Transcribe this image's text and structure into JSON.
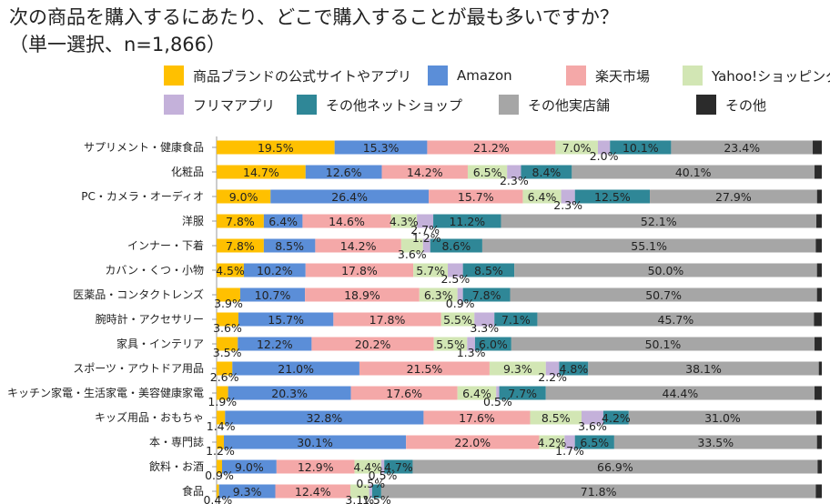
{
  "title_line1": "次の商品を購入するにあたり、どこで購入することが最も多いですか？",
  "title_line2": "（単一選択、n=1,866）",
  "chart_data": {
    "type": "bar",
    "orientation": "horizontal",
    "stacked": true,
    "percent": true,
    "legend_position": "top",
    "grid": false,
    "xlim": [
      0,
      100
    ],
    "categories": [
      "サプリメント・健康食品",
      "化粧品",
      "PC・カメラ・オーディオ",
      "洋服",
      "インナー・下着",
      "カバン・くつ・小物",
      "医薬品・コンタクトレンズ",
      "腕時計・アクセサリー",
      "家具・インテリア",
      "スポーツ・アウトドア用品",
      "キッチン家電・生活家電・美容健康家電",
      "キッズ用品・おもちゃ",
      "本・専門誌",
      "飲料・お酒",
      "食品"
    ],
    "series": [
      {
        "name": "商品ブランドの公式サイトやアプリ",
        "color": "#FFC000",
        "values": [
          19.5,
          14.7,
          9.0,
          7.8,
          7.8,
          4.5,
          3.9,
          3.6,
          3.5,
          2.6,
          1.9,
          1.4,
          1.2,
          0.9,
          0.4
        ]
      },
      {
        "name": "Amazon",
        "color": "#5B8ED8",
        "values": [
          15.3,
          12.6,
          26.4,
          6.4,
          8.5,
          10.2,
          10.7,
          15.7,
          12.2,
          21.0,
          20.3,
          32.8,
          30.1,
          9.0,
          9.3
        ]
      },
      {
        "name": "楽天市場",
        "color": "#F4A8A8",
        "values": [
          21.2,
          14.2,
          15.7,
          14.6,
          14.2,
          17.8,
          18.9,
          17.8,
          20.2,
          21.5,
          17.6,
          17.6,
          22.0,
          12.9,
          12.4
        ]
      },
      {
        "name": "Yahoo!ショッピング",
        "color": "#D2E6B4",
        "values": [
          7.0,
          6.5,
          6.4,
          4.3,
          3.6,
          5.7,
          6.3,
          5.5,
          5.5,
          9.3,
          6.4,
          8.5,
          4.2,
          4.4,
          3.1
        ]
      },
      {
        "name": "フリマアプリ",
        "color": "#C4B1DA",
        "values": [
          2.0,
          2.3,
          2.3,
          2.7,
          1.2,
          2.5,
          0.9,
          3.3,
          1.3,
          2.2,
          0.5,
          3.6,
          1.7,
          0.5,
          0.5
        ]
      },
      {
        "name": "その他ネットショップ",
        "color": "#2F8797",
        "values": [
          10.1,
          8.4,
          12.5,
          11.2,
          8.6,
          8.5,
          7.8,
          7.1,
          6.0,
          4.8,
          7.7,
          4.2,
          6.5,
          4.7,
          1.5
        ]
      },
      {
        "name": "その他実店舗",
        "color": "#A6A6A6",
        "values": [
          23.4,
          40.1,
          27.9,
          52.1,
          55.1,
          50.0,
          50.7,
          45.7,
          50.1,
          38.1,
          44.4,
          31.0,
          33.5,
          66.9,
          71.8
        ]
      },
      {
        "name": "その他",
        "color": "#2B2B2B",
        "values": [
          1.5,
          1.2,
          0.8,
          0.9,
          1.0,
          0.8,
          0.8,
          1.3,
          1.2,
          0.5,
          1.2,
          0.9,
          0.8,
          0.7,
          1.0
        ]
      }
    ]
  }
}
